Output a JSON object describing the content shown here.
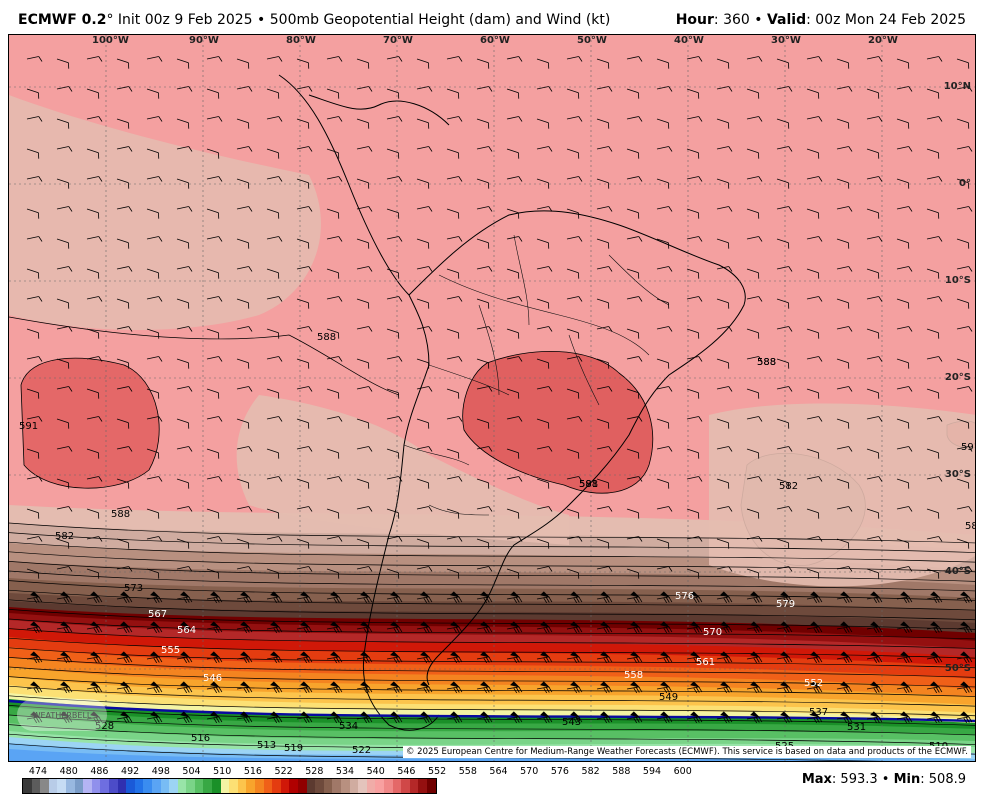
{
  "header": {
    "model": "ECMWF 0.2",
    "degree": "°",
    "init": "Init 00z 9 Feb 2025",
    "bullet": "•",
    "product": "500mb Geopotential Height (dam) and Wind (kt)",
    "hour_label": "Hour",
    "hour_value": ": 360",
    "valid_label": "Valid",
    "valid_value": ": 00z Mon 24 Feb 2025"
  },
  "map": {
    "lon_labels": [
      "100°W",
      "90°W",
      "80°W",
      "70°W",
      "60°W",
      "50°W",
      "40°W",
      "30°W",
      "20°W"
    ],
    "lat_labels": [
      "10°N",
      "0°",
      "10°S",
      "20°S",
      "30°S",
      "40°S",
      "50°S"
    ],
    "contour_labels": [
      "588",
      "591",
      "588",
      "588",
      "582",
      "582",
      "585",
      "591",
      "591",
      "573",
      "567",
      "564",
      "555",
      "546",
      "576",
      "579",
      "570",
      "561",
      "558",
      "552",
      "549",
      "543",
      "537",
      "531",
      "534",
      "528",
      "519",
      "513",
      "516",
      "522",
      "525",
      "510",
      "588",
      "588"
    ],
    "copyright": "© 2025 European Centre for Medium-Range Weather Forecasts (ECMWF). This service is based on data and products of the ECMWF.",
    "logo_text": "WEATHERBELL"
  },
  "colorbar": {
    "ticks": [
      "474",
      "480",
      "486",
      "492",
      "498",
      "504",
      "510",
      "516",
      "522",
      "528",
      "534",
      "540",
      "546",
      "552",
      "558",
      "564",
      "570",
      "576",
      "582",
      "588",
      "594",
      "600"
    ],
    "colors": [
      "#3a3a3a",
      "#5c5c5c",
      "#888888",
      "#b8cce8",
      "#c6dcf4",
      "#98b8e0",
      "#7a9cc8",
      "#b4b4f4",
      "#9090ec",
      "#6e6ee0",
      "#4c4cc8",
      "#3030b0",
      "#1a5ad8",
      "#2272e8",
      "#3a8cf0",
      "#5aa4f4",
      "#78bcf4",
      "#9cd4f4",
      "#98e4a8",
      "#7ad488",
      "#58c064",
      "#38a844",
      "#1a9028",
      "#f4f4a4",
      "#fce074",
      "#fcc44c",
      "#f8a42c",
      "#f48420",
      "#f06018",
      "#e43c10",
      "#d01808",
      "#b00000",
      "#900000",
      "#5c3a30",
      "#6e4a3c",
      "#86604e",
      "#a07868",
      "#b89080",
      "#d0aca0",
      "#e4c4bc",
      "#f0aca8",
      "#f8a0a0",
      "#f08888",
      "#e46868",
      "#d04848",
      "#b42828",
      "#941010",
      "#700000"
    ],
    "max_label": "Max",
    "max_value": ": 593.3",
    "min_label": "Min",
    "min_value": ": 508.9"
  }
}
